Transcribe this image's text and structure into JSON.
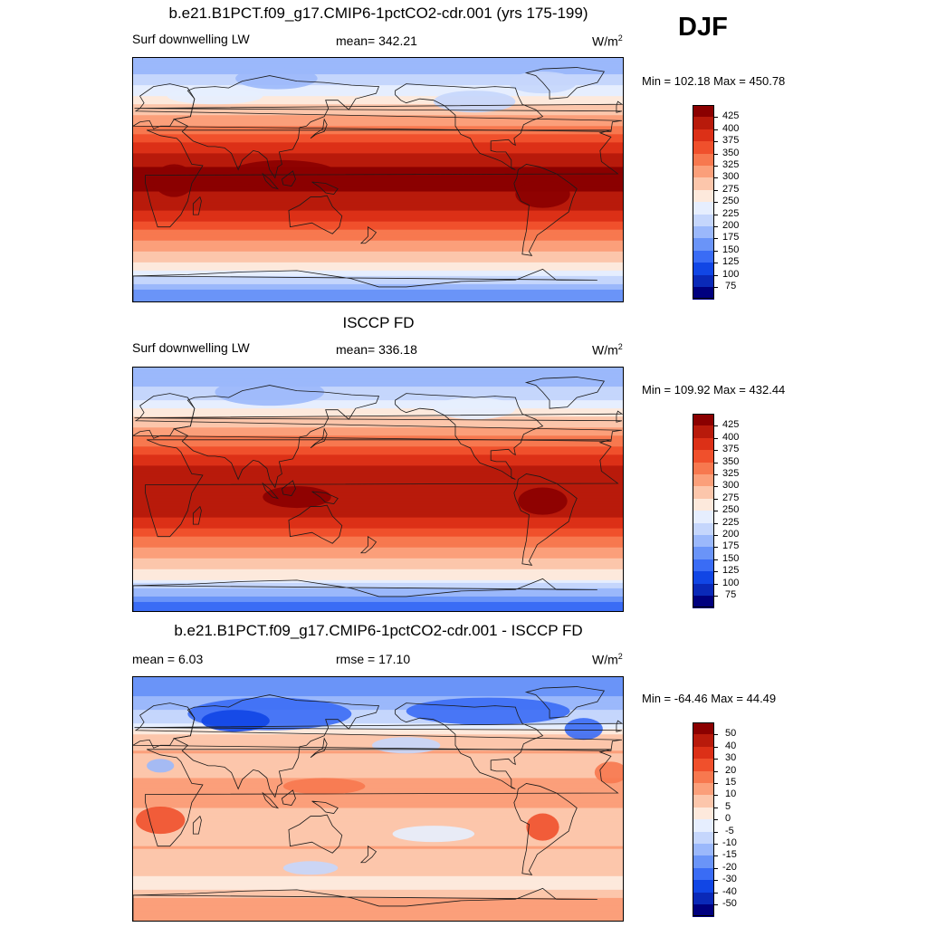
{
  "season": "DJF",
  "units_text": "W/m",
  "units_sup": "2",
  "colors": {
    "abs_scale": [
      "#00007f",
      "#0a29b8",
      "#1146e5",
      "#3a6cf5",
      "#6a94f8",
      "#9bb8fb",
      "#c5d6fc",
      "#e6eefe",
      "#fde9dc",
      "#fcc6ab",
      "#fb9f7a",
      "#f7784f",
      "#f0502c",
      "#dc3017",
      "#b81a0b",
      "#8b0000"
    ],
    "diff_scale": [
      "#00007f",
      "#0a29b8",
      "#1146e5",
      "#3a6cf5",
      "#6a94f8",
      "#9bb8fb",
      "#c5d6fc",
      "#e6eefe",
      "#fde9dc",
      "#fcc6ab",
      "#fb9f7a",
      "#f7784f",
      "#f0502c",
      "#dc3017",
      "#b81a0b",
      "#8b0000"
    ],
    "land_outline": "#1a1a1a"
  },
  "panels": [
    {
      "title": "b.e21.B1PCT.f09_g17.CMIP6-1pctCO2-cdr.001 (yrs 175-199)",
      "left_label": "Surf downwelling LW",
      "center_label": "mean= 342.21",
      "minmax": "Min = 102.18 Max = 450.78"
    },
    {
      "title": "ISCCP FD",
      "left_label": "Surf downwelling LW",
      "center_label": "mean= 336.18",
      "minmax": "Min = 109.92 Max = 432.44"
    },
    {
      "title": "b.e21.B1PCT.f09_g17.CMIP6-1pctCO2-cdr.001 - ISCCP FD",
      "left_label": "mean =   6.03",
      "center_label": "rmse =  17.10",
      "minmax": "Min = -64.46 Max =  44.49"
    }
  ],
  "chart_data": [
    {
      "type": "heatmap",
      "title": "b.e21.B1PCT.f09_g17.CMIP6-1pctCO2-cdr.001 (yrs 175-199)",
      "variable": "Surf downwelling LW",
      "units": "W/m2",
      "mean": 342.21,
      "min": 102.18,
      "max": 450.78,
      "colorbar_levels": [
        425,
        400,
        375,
        350,
        325,
        300,
        275,
        250,
        225,
        200,
        175,
        150,
        125,
        100,
        75
      ],
      "zonal_profile": {
        "lat": [
          85,
          75,
          65,
          55,
          45,
          35,
          25,
          15,
          5,
          -5,
          -15,
          -25,
          -35,
          -45,
          -55,
          -65,
          -75,
          -85
        ],
        "value": [
          185,
          205,
          240,
          280,
          310,
          345,
          385,
          420,
          430,
          430,
          415,
          390,
          355,
          320,
          290,
          255,
          200,
          150
        ]
      }
    },
    {
      "type": "heatmap",
      "title": "ISCCP FD",
      "variable": "Surf downwelling LW",
      "units": "W/m2",
      "mean": 336.18,
      "min": 109.92,
      "max": 432.44,
      "colorbar_levels": [
        425,
        400,
        375,
        350,
        325,
        300,
        275,
        250,
        225,
        200,
        175,
        150,
        125,
        100,
        75
      ],
      "zonal_profile": {
        "lat": [
          85,
          75,
          65,
          55,
          45,
          35,
          25,
          15,
          5,
          -5,
          -15,
          -25,
          -35,
          -45,
          -55,
          -65,
          -75,
          -85
        ],
        "value": [
          190,
          200,
          230,
          270,
          305,
          340,
          380,
          410,
          420,
          420,
          410,
          385,
          345,
          315,
          285,
          250,
          185,
          140
        ]
      }
    },
    {
      "type": "heatmap",
      "title": "b.e21.B1PCT.f09_g17.CMIP6-1pctCO2-cdr.001 - ISCCP FD",
      "variable": "difference",
      "units": "W/m2",
      "mean": 6.03,
      "rmse": 17.1,
      "min": -64.46,
      "max": 44.49,
      "colorbar_levels": [
        50,
        40,
        30,
        20,
        15,
        10,
        5,
        0,
        -5,
        -10,
        -15,
        -20,
        -30,
        -40,
        -50
      ],
      "zonal_profile": {
        "lat": [
          85,
          75,
          65,
          55,
          45,
          35,
          25,
          15,
          5,
          -5,
          -15,
          -25,
          -35,
          -45,
          -55,
          -65,
          -75,
          -85
        ],
        "value": [
          -20,
          -15,
          -10,
          -5,
          8,
          10,
          8,
          10,
          10,
          10,
          8,
          8,
          10,
          8,
          5,
          4,
          12,
          10
        ]
      }
    }
  ]
}
